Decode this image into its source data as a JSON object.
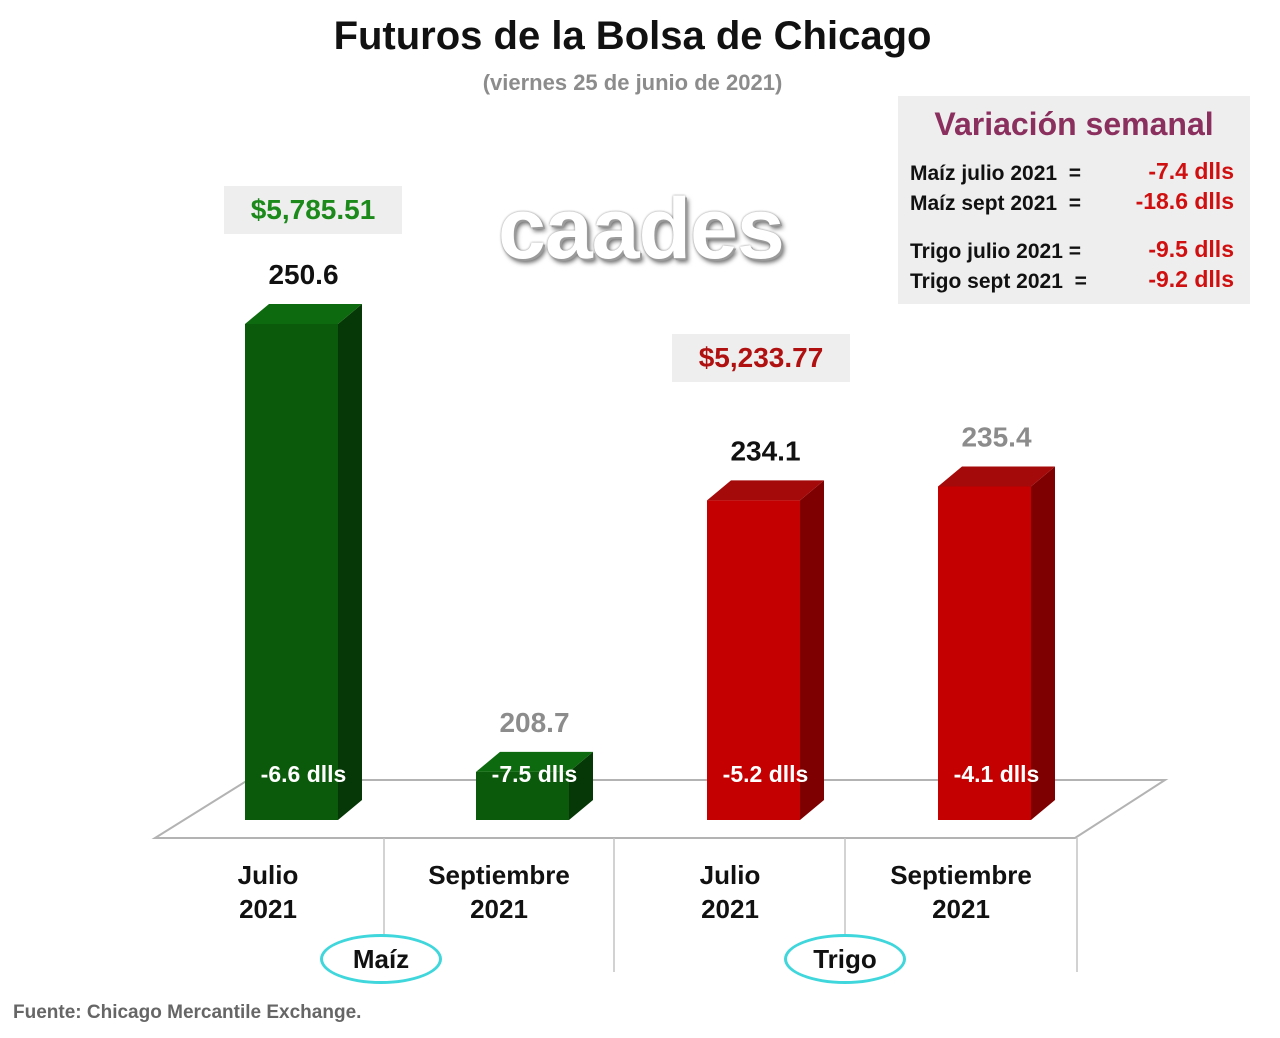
{
  "chart_data": {
    "type": "bar",
    "title": "Futuros de la Bolsa de Chicago",
    "subtitle": "(viernes 25 de junio de 2021)",
    "ylim": [
      0,
      260
    ],
    "grid": false,
    "legend": "",
    "groups": [
      "Maíz",
      "Trigo"
    ],
    "categories": [
      {
        "line1": "Julio",
        "line2": "2021"
      },
      {
        "line1": "Septiembre",
        "line2": "2021"
      },
      {
        "line1": "Julio",
        "line2": "2021"
      },
      {
        "line1": "Septiembre",
        "line2": "2021"
      }
    ],
    "values": [
      250.6,
      208.7,
      234.1,
      235.4
    ],
    "value_labels": [
      "250.6",
      "208.7",
      "234.1",
      "235.4"
    ],
    "change_labels": [
      "-6.6 dlls",
      "-7.5 dlls",
      "-5.2 dlls",
      "-4.1 dlls"
    ],
    "group_index": [
      0,
      0,
      1,
      1
    ],
    "price_boxes": [
      {
        "text": "$5,785.51",
        "color": "#1b8a1b"
      },
      {
        "text": "$5,233.77",
        "color": "#b01010"
      }
    ],
    "colors": {
      "maiz_front": "#0b5a0b",
      "maiz_side": "#063706",
      "maiz_top": "#0e6a0e",
      "trigo_front": "#c40000",
      "trigo_side": "#7e0000",
      "trigo_top": "#a50a0a",
      "value_label_dark": "#111111",
      "value_label_gray": "#8c8c8c"
    }
  },
  "brand": "caades",
  "weekly_variation": {
    "title": "Variación semanal",
    "rows": [
      {
        "label": "Maíz julio 2021  =",
        "value": "-7.4 dlls"
      },
      {
        "label": "Maíz sept 2021  =",
        "value": "-18.6 dlls"
      },
      {
        "label": "Trigo julio 2021 =",
        "value": "-9.5 dlls"
      },
      {
        "label": "Trigo sept 2021  =",
        "value": "-9.2 dlls"
      }
    ]
  },
  "source": "Fuente: Chicago Mercantile Exchange."
}
